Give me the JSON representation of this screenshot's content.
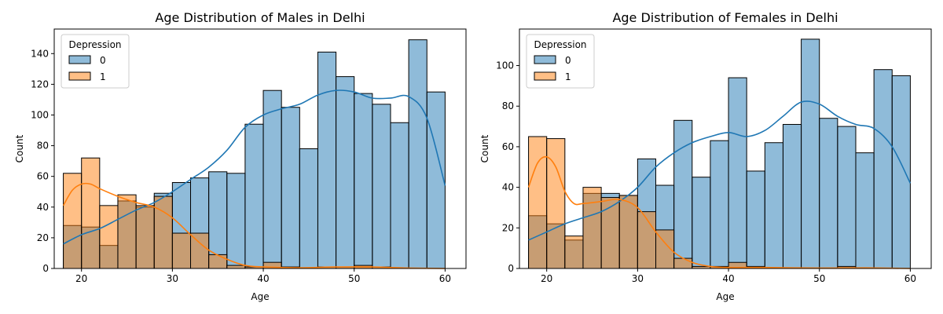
{
  "chart_data": [
    {
      "type": "histogram",
      "title": "Age Distribution of Males in Delhi",
      "xlabel": "Age",
      "ylabel": "Count",
      "xlim": [
        17,
        62.3
      ],
      "ylim": [
        0,
        156
      ],
      "xticks": [
        20,
        30,
        40,
        50,
        60
      ],
      "yticks": [
        0,
        20,
        40,
        60,
        80,
        100,
        120,
        140
      ],
      "legend": {
        "title": "Depression",
        "entries": [
          "0",
          "1"
        ],
        "placement": "top-left"
      },
      "bin_edges": [
        18,
        20,
        22,
        24,
        26,
        28,
        30,
        32,
        34,
        36,
        38,
        40,
        42,
        44,
        46,
        48,
        50,
        52,
        54,
        56,
        58,
        60
      ],
      "series": [
        {
          "name": "0",
          "color": "#1f77b4",
          "values": [
            28,
            27,
            15,
            44,
            40,
            49,
            56,
            59,
            63,
            62,
            94,
            116,
            105,
            78,
            141,
            125,
            114,
            107,
            95,
            149,
            115
          ],
          "kde": [
            [
              18,
              16
            ],
            [
              20,
              22
            ],
            [
              22,
              26
            ],
            [
              24,
              32
            ],
            [
              26,
              38
            ],
            [
              28,
              43
            ],
            [
              30,
              50
            ],
            [
              32,
              58
            ],
            [
              34,
              66
            ],
            [
              36,
              77
            ],
            [
              38,
              92
            ],
            [
              40,
              100
            ],
            [
              42,
              104
            ],
            [
              44,
              107
            ],
            [
              46,
              113
            ],
            [
              48,
              116
            ],
            [
              50,
              115
            ],
            [
              52,
              111
            ],
            [
              54,
              111
            ],
            [
              56,
              112
            ],
            [
              58,
              98
            ],
            [
              60,
              54
            ]
          ]
        },
        {
          "name": "1",
          "color": "#ff7f0e",
          "values": [
            62,
            72,
            41,
            48,
            41,
            47,
            23,
            23,
            9,
            2,
            1,
            4,
            1,
            0,
            1,
            1,
            2,
            1,
            0,
            0,
            0
          ],
          "kde": [
            [
              18,
              41
            ],
            [
              19,
              51
            ],
            [
              20,
              55
            ],
            [
              21,
              55
            ],
            [
              22,
              52
            ],
            [
              24,
              47
            ],
            [
              26,
              43
            ],
            [
              28,
              40
            ],
            [
              30,
              33
            ],
            [
              32,
              22
            ],
            [
              34,
              12
            ],
            [
              36,
              6
            ],
            [
              38,
              2
            ],
            [
              40,
              1
            ],
            [
              44,
              0.5
            ],
            [
              48,
              1
            ],
            [
              52,
              1
            ],
            [
              56,
              0.3
            ],
            [
              60,
              0
            ]
          ]
        }
      ]
    },
    {
      "type": "histogram",
      "title": "Age Distribution of Females in Delhi",
      "xlabel": "Age",
      "ylabel": "Count",
      "xlim": [
        17,
        62.3
      ],
      "ylim": [
        0,
        118
      ],
      "xticks": [
        20,
        30,
        40,
        50,
        60
      ],
      "yticks": [
        0,
        20,
        40,
        60,
        80,
        100
      ],
      "legend": {
        "title": "Depression",
        "entries": [
          "0",
          "1"
        ],
        "placement": "top-left"
      },
      "bin_edges": [
        18,
        20,
        22,
        24,
        26,
        28,
        30,
        32,
        34,
        36,
        38,
        40,
        42,
        44,
        46,
        48,
        50,
        52,
        54,
        56,
        58,
        60
      ],
      "series": [
        {
          "name": "0",
          "color": "#1f77b4",
          "values": [
            26,
            22,
            14,
            37,
            37,
            36,
            54,
            41,
            73,
            45,
            63,
            94,
            48,
            62,
            71,
            113,
            74,
            70,
            57,
            98,
            95
          ],
          "kde": [
            [
              18,
              14
            ],
            [
              20,
              18
            ],
            [
              22,
              22
            ],
            [
              24,
              25
            ],
            [
              26,
              28
            ],
            [
              28,
              33
            ],
            [
              30,
              40
            ],
            [
              32,
              50
            ],
            [
              34,
              57
            ],
            [
              36,
              62
            ],
            [
              38,
              65
            ],
            [
              40,
              67
            ],
            [
              42,
              65
            ],
            [
              44,
              68
            ],
            [
              46,
              75
            ],
            [
              48,
              82
            ],
            [
              50,
              81
            ],
            [
              52,
              75
            ],
            [
              54,
              71
            ],
            [
              56,
              69
            ],
            [
              58,
              60
            ],
            [
              60,
              42
            ]
          ]
        },
        {
          "name": "1",
          "color": "#ff7f0e",
          "values": [
            65,
            64,
            16,
            40,
            35,
            36,
            28,
            19,
            5,
            1,
            1,
            3,
            1,
            0,
            0,
            0,
            0,
            1,
            0,
            0,
            0
          ],
          "kde": [
            [
              18,
              40
            ],
            [
              19,
              52
            ],
            [
              20,
              55
            ],
            [
              21,
              50
            ],
            [
              22,
              38
            ],
            [
              23,
              32
            ],
            [
              24,
              32
            ],
            [
              26,
              33
            ],
            [
              28,
              34
            ],
            [
              30,
              30
            ],
            [
              32,
              18
            ],
            [
              34,
              8
            ],
            [
              36,
              3
            ],
            [
              38,
              1
            ],
            [
              40,
              0.5
            ],
            [
              44,
              0.5
            ],
            [
              50,
              0.2
            ],
            [
              55,
              0.3
            ],
            [
              60,
              0
            ]
          ]
        }
      ]
    }
  ]
}
